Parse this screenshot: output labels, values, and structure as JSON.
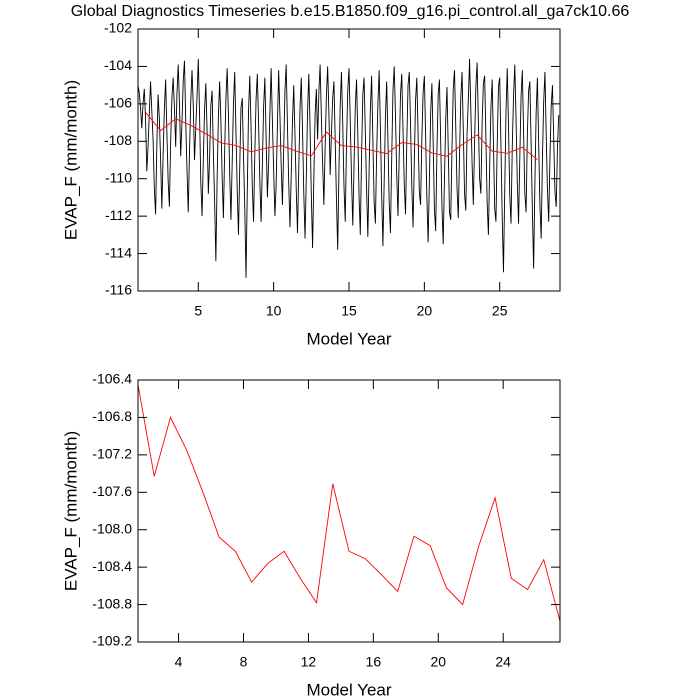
{
  "chart_data": [
    {
      "type": "line",
      "title": "Global Diagnostics Timeseries b.e15.B1850.f09_g16.pi_control.all_ga7ck10.66",
      "xlabel": "Model Year",
      "ylabel": "EVAP_F (mm/month)",
      "xlim": [
        1,
        29
      ],
      "xticks": [
        5,
        10,
        15,
        20,
        25
      ],
      "ylim": [
        -116,
        -102
      ],
      "yticks": [
        -116,
        -114,
        -112,
        -110,
        -108,
        -106,
        -104,
        -102
      ],
      "series": [
        {
          "color": "#000000",
          "x": [
            1,
            1.083,
            1.167,
            1.25,
            1.333,
            1.417,
            1.5,
            1.583,
            1.667,
            1.75,
            1.833,
            1.917,
            2,
            2.083,
            2.167,
            2.25,
            2.333,
            2.417,
            2.5,
            2.583,
            2.667,
            2.75,
            2.833,
            2.917,
            3,
            3.083,
            3.167,
            3.25,
            3.333,
            3.417,
            3.5,
            3.583,
            3.667,
            3.75,
            3.833,
            3.917,
            4,
            4.083,
            4.167,
            4.25,
            4.333,
            4.417,
            4.5,
            4.583,
            4.667,
            4.75,
            4.833,
            4.917,
            5,
            5.083,
            5.167,
            5.25,
            5.333,
            5.417,
            5.5,
            5.583,
            5.667,
            5.75,
            5.833,
            5.917,
            6,
            6.083,
            6.167,
            6.25,
            6.333,
            6.417,
            6.5,
            6.583,
            6.667,
            6.75,
            6.833,
            6.917,
            7,
            7.083,
            7.167,
            7.25,
            7.333,
            7.417,
            7.5,
            7.583,
            7.667,
            7.75,
            7.833,
            7.917,
            8,
            8.083,
            8.167,
            8.25,
            8.333,
            8.417,
            8.5,
            8.583,
            8.667,
            8.75,
            8.833,
            8.917,
            9,
            9.083,
            9.167,
            9.25,
            9.333,
            9.417,
            9.5,
            9.583,
            9.667,
            9.75,
            9.833,
            9.917,
            10,
            10.083,
            10.167,
            10.25,
            10.333,
            10.417,
            10.5,
            10.583,
            10.667,
            10.75,
            10.833,
            10.917,
            11,
            11.083,
            11.167,
            11.25,
            11.333,
            11.417,
            11.5,
            11.583,
            11.667,
            11.75,
            11.833,
            11.917,
            12,
            12.083,
            12.167,
            12.25,
            12.333,
            12.417,
            12.5,
            12.583,
            12.667,
            12.75,
            12.833,
            12.917,
            13,
            13.083,
            13.167,
            13.25,
            13.333,
            13.417,
            13.5,
            13.583,
            13.667,
            13.75,
            13.833,
            13.917,
            14,
            14.083,
            14.167,
            14.25,
            14.333,
            14.417,
            14.5,
            14.583,
            14.667,
            14.75,
            14.833,
            14.917,
            15,
            15.083,
            15.167,
            15.25,
            15.333,
            15.417,
            15.5,
            15.583,
            15.667,
            15.75,
            15.833,
            15.917,
            16,
            16.083,
            16.167,
            16.25,
            16.333,
            16.417,
            16.5,
            16.583,
            16.667,
            16.75,
            16.833,
            16.917,
            17,
            17.083,
            17.167,
            17.25,
            17.333,
            17.417,
            17.5,
            17.583,
            17.667,
            17.75,
            17.833,
            17.917,
            18,
            18.083,
            18.167,
            18.25,
            18.333,
            18.417,
            18.5,
            18.583,
            18.667,
            18.75,
            18.833,
            18.917,
            19,
            19.083,
            19.167,
            19.25,
            19.333,
            19.417,
            19.5,
            19.583,
            19.667,
            19.75,
            19.833,
            19.917,
            20,
            20.083,
            20.167,
            20.25,
            20.333,
            20.417,
            20.5,
            20.583,
            20.667,
            20.75,
            20.833,
            20.917,
            21,
            21.083,
            21.167,
            21.25,
            21.333,
            21.417,
            21.5,
            21.583,
            21.667,
            21.75,
            21.833,
            21.917,
            22,
            22.083,
            22.167,
            22.25,
            22.333,
            22.417,
            22.5,
            22.583,
            22.667,
            22.75,
            22.833,
            22.917,
            23,
            23.083,
            23.167,
            23.25,
            23.333,
            23.417,
            23.5,
            23.583,
            23.667,
            23.75,
            23.833,
            23.917,
            24,
            24.083,
            24.167,
            24.25,
            24.333,
            24.417,
            24.5,
            24.583,
            24.667,
            24.75,
            24.833,
            24.917,
            25,
            25.083,
            25.167,
            25.25,
            25.333,
            25.417,
            25.5,
            25.583,
            25.667,
            25.75,
            25.833,
            25.917,
            26,
            26.083,
            26.167,
            26.25,
            26.333,
            26.417,
            26.5,
            26.583,
            26.667,
            26.75,
            26.833,
            26.917,
            27,
            27.083,
            27.167,
            27.25,
            27.333,
            27.417,
            27.5,
            27.583,
            27.667,
            27.75,
            27.833,
            27.917,
            28,
            28.083,
            28.167,
            28.25,
            28.333,
            28.417,
            28.5,
            28.583,
            28.667,
            28.75,
            28.833,
            28.917
          ],
          "values": [
            -105.0,
            -105.4,
            -106.2,
            -107.3,
            -106.0,
            -105.2,
            -106.8,
            -109.6,
            -108.3,
            -106.5,
            -104.8,
            -106.4,
            -107.9,
            -110.5,
            -111.9,
            -108.2,
            -105.5,
            -106.8,
            -109.0,
            -111.6,
            -108.7,
            -106.3,
            -104.7,
            -107.5,
            -110.1,
            -111.5,
            -108.0,
            -105.7,
            -104.6,
            -106.2,
            -108.3,
            -105.5,
            -103.9,
            -106.0,
            -108.8,
            -107.0,
            -104.8,
            -103.7,
            -106.9,
            -109.5,
            -111.8,
            -108.6,
            -105.9,
            -104.2,
            -106.1,
            -109.0,
            -107.3,
            -105.6,
            -103.6,
            -106.5,
            -110.2,
            -112.0,
            -109.0,
            -106.3,
            -104.9,
            -107.4,
            -110.8,
            -108.9,
            -106.1,
            -105.3,
            -108.6,
            -111.2,
            -114.4,
            -110.0,
            -106.7,
            -104.8,
            -106.9,
            -109.9,
            -112.1,
            -108.5,
            -105.7,
            -104.1,
            -106.6,
            -109.7,
            -112.2,
            -109.1,
            -106.0,
            -104.3,
            -107.5,
            -110.6,
            -113.0,
            -109.4,
            -106.2,
            -105.7,
            -108.8,
            -111.5,
            -115.3,
            -110.7,
            -106.4,
            -104.5,
            -107.2,
            -110.4,
            -112.3,
            -108.7,
            -105.8,
            -104.4,
            -107.0,
            -110.1,
            -112.3,
            -109.3,
            -106.2,
            -104.6,
            -107.8,
            -111.0,
            -109.2,
            -106.5,
            -104.1,
            -106.9,
            -109.5,
            -112.0,
            -110.3,
            -107.1,
            -104.2,
            -106.6,
            -109.3,
            -111.4,
            -108.4,
            -105.3,
            -103.9,
            -107.2,
            -110.2,
            -112.6,
            -109.8,
            -106.9,
            -105.0,
            -107.7,
            -110.6,
            -112.9,
            -109.5,
            -106.2,
            -104.6,
            -107.4,
            -110.8,
            -113.2,
            -109.9,
            -106.4,
            -104.4,
            -107.3,
            -110.9,
            -113.7,
            -110.0,
            -106.6,
            -105.2,
            -107.9,
            -105.4,
            -103.9,
            -106.7,
            -109.2,
            -111.4,
            -108.3,
            -105.6,
            -104.0,
            -106.5,
            -109.8,
            -107.6,
            -105.7,
            -104.8,
            -107.9,
            -111.1,
            -113.8,
            -109.5,
            -106.1,
            -104.3,
            -107.0,
            -110.4,
            -112.3,
            -108.2,
            -105.3,
            -104.1,
            -106.9,
            -110.0,
            -112.5,
            -109.3,
            -106.2,
            -104.7,
            -107.6,
            -110.9,
            -113.0,
            -108.8,
            -105.5,
            -104.6,
            -107.5,
            -110.6,
            -113.1,
            -109.6,
            -106.3,
            -104.5,
            -107.9,
            -111.2,
            -112.4,
            -108.7,
            -106.0,
            -104.2,
            -107.3,
            -110.8,
            -113.6,
            -110.2,
            -106.7,
            -104.8,
            -107.9,
            -111.3,
            -112.9,
            -108.9,
            -105.3,
            -104.0,
            -106.6,
            -109.8,
            -112.0,
            -108.7,
            -105.5,
            -104.4,
            -107.4,
            -110.3,
            -111.9,
            -108.1,
            -105.0,
            -104.3,
            -107.1,
            -110.4,
            -112.6,
            -109.1,
            -105.8,
            -104.6,
            -107.6,
            -110.7,
            -111.4,
            -107.9,
            -105.4,
            -104.5,
            -107.7,
            -111.0,
            -113.4,
            -110.1,
            -106.5,
            -104.9,
            -108.0,
            -111.6,
            -112.8,
            -108.6,
            -105.5,
            -104.7,
            -108.0,
            -111.5,
            -113.5,
            -110.0,
            -106.9,
            -105.1,
            -108.3,
            -111.8,
            -112.2,
            -108.4,
            -105.2,
            -104.2,
            -107.2,
            -110.5,
            -112.1,
            -108.8,
            -105.7,
            -104.3,
            -107.4,
            -110.8,
            -111.7,
            -107.6,
            -105.8,
            -103.6,
            -106.3,
            -109.2,
            -111.4,
            -108.0,
            -105.1,
            -103.8,
            -106.9,
            -110.0,
            -110.8,
            -107.0,
            -104.9,
            -104.5,
            -107.8,
            -111.3,
            -113.0,
            -109.4,
            -106.2,
            -104.7,
            -108.1,
            -111.6,
            -112.3,
            -108.2,
            -105.1,
            -104.6,
            -108.3,
            -112.1,
            -115.0,
            -110.6,
            -106.4,
            -104.1,
            -107.2,
            -110.9,
            -112.4,
            -108.3,
            -105.6,
            -103.9,
            -106.8,
            -110.2,
            -112.4,
            -108.9,
            -105.6,
            -104.2,
            -107.5,
            -110.8,
            -111.8,
            -107.7,
            -105.3,
            -104.8,
            -108.1,
            -111.7,
            -114.8,
            -110.3,
            -106.5,
            -104.6,
            -108.0,
            -111.4,
            -113.2,
            -109.0,
            -105.9,
            -104.3,
            -107.6,
            -110.6,
            -112.3,
            -108.9,
            -106.1,
            -105.0,
            -107.9,
            -110.7,
            -111.5,
            -108.3,
            -106.6
          ]
        },
        {
          "color": "#ff0000",
          "x": [
            1.5,
            2.5,
            3.5,
            4.5,
            5.5,
            6.5,
            7.5,
            8.5,
            9.5,
            10.5,
            11.5,
            12.5,
            13.5,
            14.5,
            15.5,
            16.5,
            17.5,
            18.5,
            19.5,
            20.5,
            21.5,
            22.5,
            23.5,
            24.5,
            25.5,
            26.5,
            27.5
          ],
          "values": [
            -106.45,
            -107.43,
            -106.8,
            -107.15,
            -107.6,
            -108.08,
            -108.23,
            -108.56,
            -108.36,
            -108.23,
            -108.52,
            -108.78,
            -107.51,
            -108.23,
            -108.31,
            -108.48,
            -108.66,
            -108.07,
            -108.17,
            -108.62,
            -108.8,
            -108.17,
            -107.66,
            -108.52,
            -108.64,
            -108.32,
            -108.98
          ]
        }
      ]
    },
    {
      "type": "line",
      "xlabel": "Model Year",
      "ylabel": "EVAP_F (mm/month)",
      "xlim": [
        1.5,
        27.5
      ],
      "xticks": [
        4,
        8,
        12,
        16,
        20,
        24
      ],
      "ylim": [
        -109.2,
        -106.4
      ],
      "yticks": [
        -109.2,
        -108.8,
        -108.4,
        {
          "value": -108,
          "label": "-108.0"
        },
        -107.6,
        -107.2,
        -106.8,
        -106.4
      ],
      "x": [
        1.5,
        2.5,
        3.5,
        4.5,
        5.5,
        6.5,
        7.5,
        8.5,
        9.5,
        10.5,
        11.5,
        12.5,
        13.5,
        14.5,
        15.5,
        16.5,
        17.5,
        18.5,
        19.5,
        20.5,
        21.5,
        22.5,
        23.5,
        24.5,
        25.5,
        26.5,
        27.5
      ],
      "series": [
        {
          "color": "#ff0000",
          "values": [
            -106.45,
            -107.43,
            -106.8,
            -107.15,
            -107.6,
            -108.08,
            -108.23,
            -108.56,
            -108.36,
            -108.23,
            -108.52,
            -108.78,
            -107.51,
            -108.23,
            -108.31,
            -108.48,
            -108.66,
            -108.07,
            -108.17,
            -108.62,
            -108.8,
            -108.17,
            -107.66,
            -108.52,
            -108.64,
            -108.32,
            -108.98
          ]
        }
      ]
    }
  ]
}
